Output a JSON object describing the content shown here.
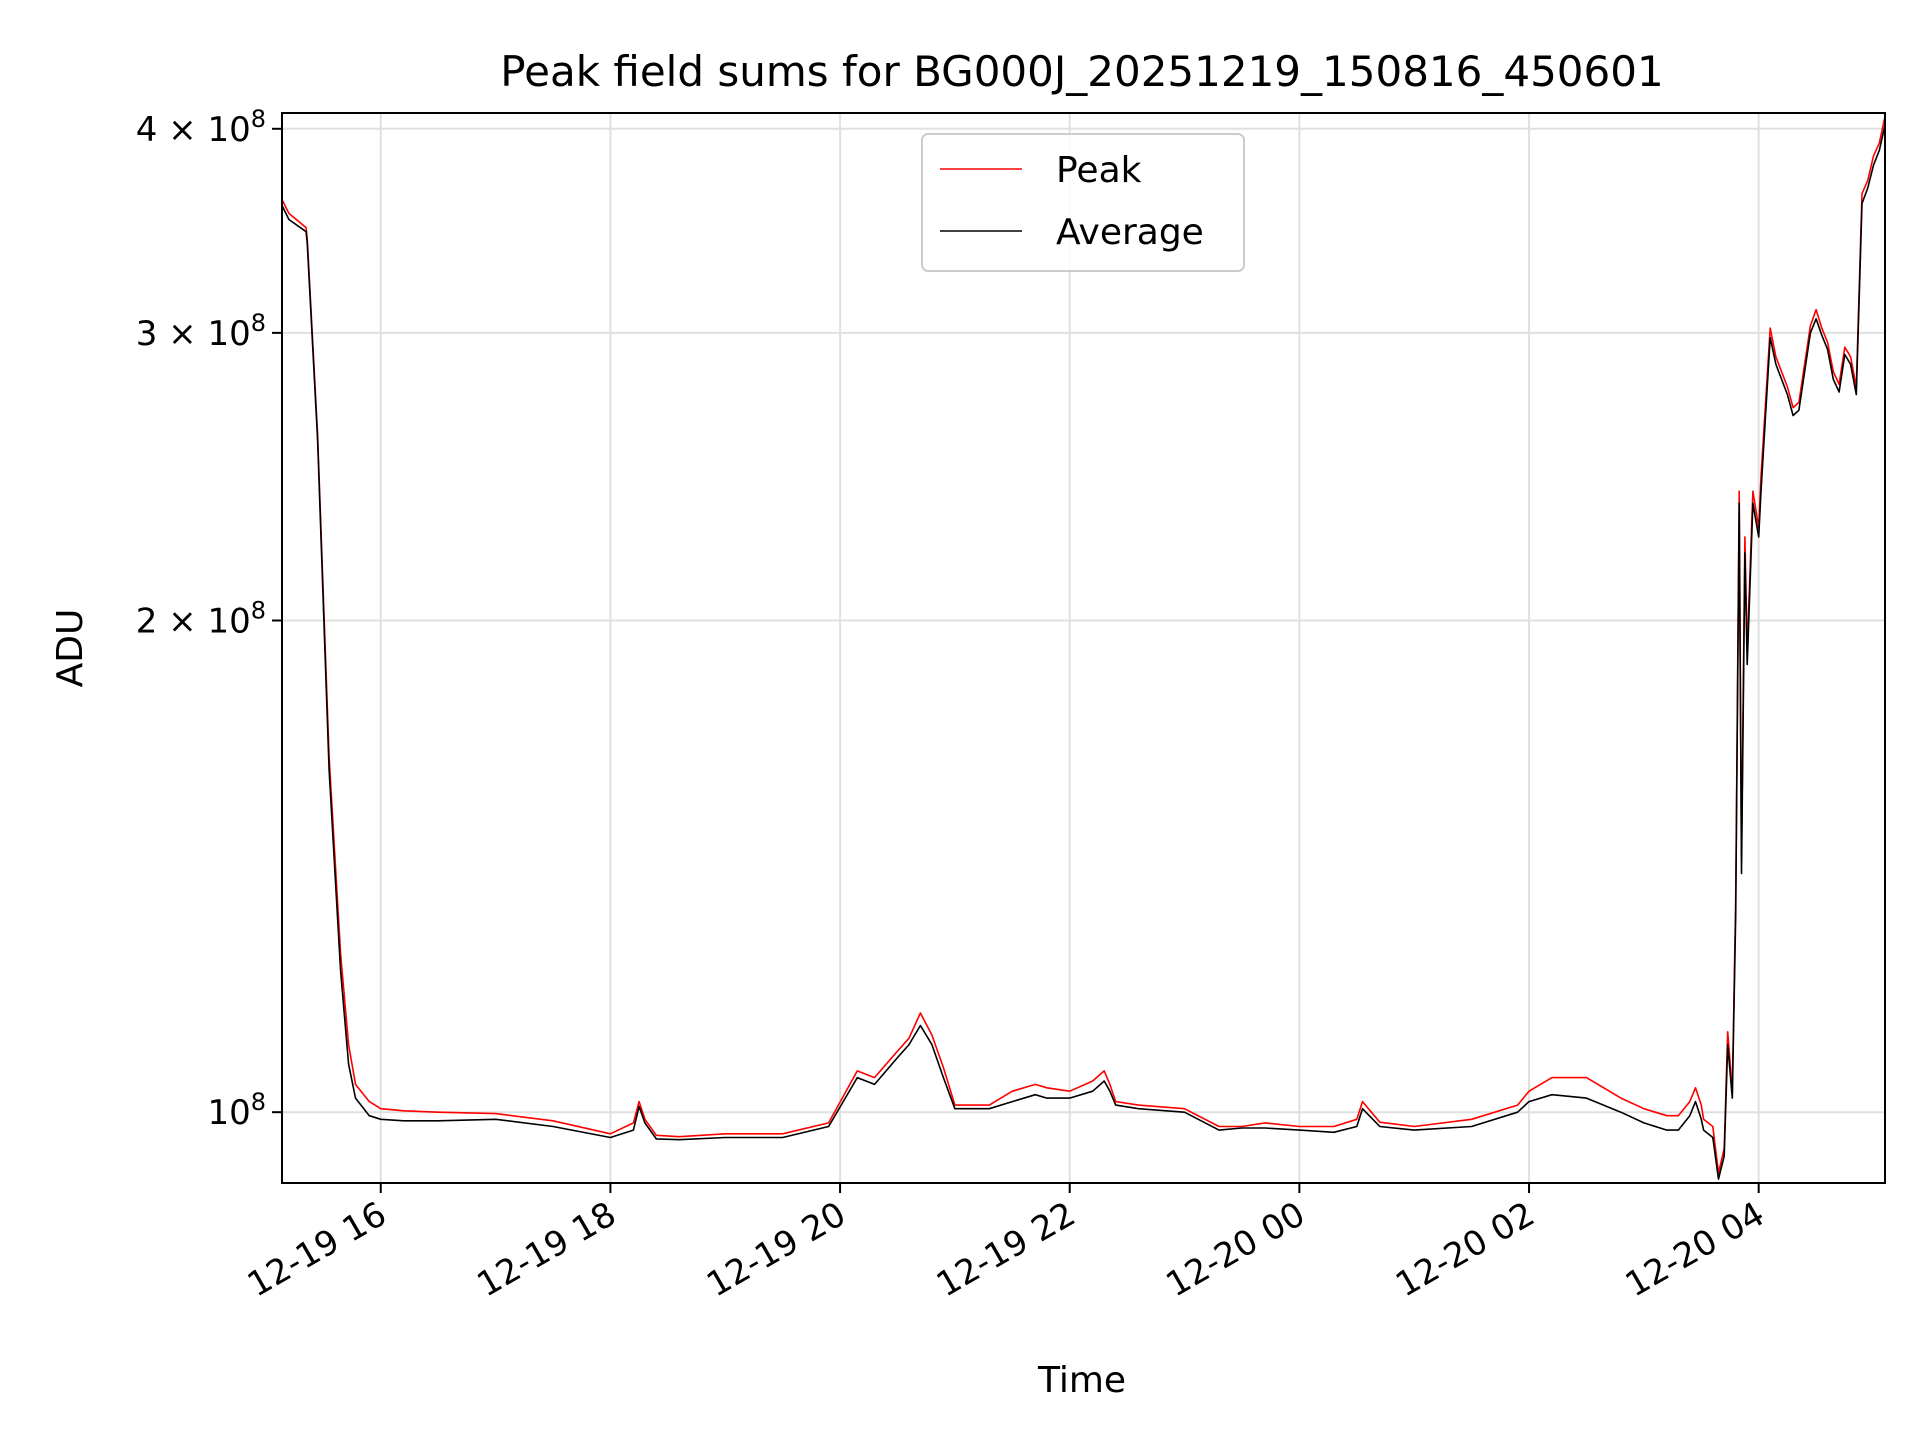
{
  "chart_data": {
    "type": "line",
    "title": "Peak field sums for BG000J_20251219_150816_450601",
    "xlabel": "Time",
    "ylabel": "ADU",
    "yscale": "log",
    "xlim_hours": [
      15.14,
      29.1
    ],
    "ylim": [
      90500000,
      409000000
    ],
    "grid": true,
    "legend_position": "upper-center",
    "x_ticks": [
      {
        "hour": 16,
        "label": "12-19 16"
      },
      {
        "hour": 18,
        "label": "12-19 18"
      },
      {
        "hour": 20,
        "label": "12-19 20"
      },
      {
        "hour": 22,
        "label": "12-19 22"
      },
      {
        "hour": 24,
        "label": "12-20 00"
      },
      {
        "hour": 26,
        "label": "12-20 02"
      },
      {
        "hour": 28,
        "label": "12-20 04"
      }
    ],
    "y_ticks": [
      {
        "value": 100000000,
        "base": "10",
        "exp": "8"
      },
      {
        "value": 200000000,
        "base": "2 × 10",
        "exp": "8"
      },
      {
        "value": 300000000,
        "base": "3 × 10",
        "exp": "8"
      },
      {
        "value": 400000000,
        "base": "4 × 10",
        "exp": "8"
      }
    ],
    "series": [
      {
        "name": "Peak",
        "color": "#ff0000",
        "x_hours": [
          15.14,
          15.2,
          15.35,
          15.36,
          15.45,
          15.55,
          15.65,
          15.72,
          15.78,
          15.9,
          16.0,
          16.2,
          16.5,
          17.0,
          17.5,
          18.0,
          18.2,
          18.25,
          18.3,
          18.4,
          18.6,
          19.0,
          19.5,
          19.9,
          20.15,
          20.3,
          20.5,
          20.6,
          20.7,
          20.8,
          20.9,
          21.0,
          21.3,
          21.5,
          21.7,
          21.8,
          22.0,
          22.2,
          22.3,
          22.35,
          22.4,
          22.6,
          23.0,
          23.3,
          23.5,
          23.7,
          24.0,
          24.3,
          24.5,
          24.55,
          24.7,
          25.0,
          25.5,
          25.9,
          26.0,
          26.2,
          26.5,
          26.8,
          27.0,
          27.2,
          27.3,
          27.4,
          27.45,
          27.5,
          27.52,
          27.6,
          27.65,
          27.7,
          27.73,
          27.77,
          27.8,
          27.83,
          27.85,
          27.88,
          27.9,
          27.95,
          28.0,
          28.02,
          28.1,
          28.15,
          28.25,
          28.3,
          28.35,
          28.45,
          28.5,
          28.55,
          28.6,
          28.65,
          28.7,
          28.75,
          28.8,
          28.85,
          28.9,
          28.95,
          29.0,
          29.05,
          29.1
        ],
        "values": [
          362000000,
          355000000,
          348000000,
          342000000,
          260000000,
          165000000,
          125000000,
          110000000,
          104000000,
          101500000,
          100500000,
          100200000,
          100000000,
          99800000,
          98800000,
          97000000,
          98500000,
          101500000,
          99000000,
          96800000,
          96600000,
          97000000,
          97000000,
          98500000,
          106000000,
          105000000,
          109000000,
          111000000,
          115000000,
          111500000,
          106500000,
          101000000,
          101000000,
          103000000,
          104000000,
          103500000,
          103000000,
          104500000,
          106000000,
          104000000,
          101500000,
          101000000,
          100500000,
          98000000,
          98000000,
          98500000,
          98000000,
          98000000,
          99000000,
          101500000,
          98600000,
          98000000,
          99000000,
          101000000,
          103000000,
          105000000,
          105000000,
          102000000,
          100500000,
          99500000,
          99500000,
          101500000,
          103500000,
          101000000,
          99000000,
          98000000,
          91800000,
          95000000,
          112000000,
          103000000,
          135000000,
          240000000,
          143000000,
          225000000,
          192000000,
          240000000,
          228000000,
          245000000,
          302000000,
          290000000,
          278000000,
          270000000,
          272000000,
          303000000,
          310000000,
          302000000,
          296000000,
          284000000,
          279000000,
          294000000,
          290000000,
          278000000,
          365000000,
          372000000,
          385000000,
          392000000,
          407000000
        ]
      },
      {
        "name": "Average",
        "color": "#000000",
        "x_hours": [
          15.14,
          15.2,
          15.35,
          15.36,
          15.45,
          15.55,
          15.65,
          15.72,
          15.78,
          15.9,
          16.0,
          16.2,
          16.5,
          17.0,
          17.5,
          18.0,
          18.2,
          18.25,
          18.3,
          18.4,
          18.6,
          19.0,
          19.5,
          19.9,
          20.15,
          20.3,
          20.5,
          20.6,
          20.7,
          20.8,
          20.9,
          21.0,
          21.3,
          21.5,
          21.7,
          21.8,
          22.0,
          22.2,
          22.3,
          22.35,
          22.4,
          22.6,
          23.0,
          23.3,
          23.5,
          23.7,
          24.0,
          24.3,
          24.5,
          24.55,
          24.7,
          25.0,
          25.5,
          25.9,
          26.0,
          26.2,
          26.5,
          26.8,
          27.0,
          27.2,
          27.3,
          27.4,
          27.45,
          27.5,
          27.52,
          27.6,
          27.65,
          27.7,
          27.73,
          27.77,
          27.8,
          27.83,
          27.85,
          27.88,
          27.9,
          27.95,
          28.0,
          28.02,
          28.1,
          28.15,
          28.25,
          28.3,
          28.35,
          28.45,
          28.5,
          28.55,
          28.6,
          28.65,
          28.7,
          28.75,
          28.8,
          28.85,
          28.9,
          28.95,
          29.0,
          29.05,
          29.1
        ],
        "values": [
          359000000,
          352000000,
          346000000,
          340000000,
          258000000,
          162000000,
          122000000,
          107000000,
          102000000,
          99500000,
          99000000,
          98800000,
          98800000,
          99000000,
          98000000,
          96500000,
          97500000,
          100800000,
          98500000,
          96300000,
          96200000,
          96500000,
          96500000,
          98000000,
          105000000,
          104000000,
          108000000,
          110000000,
          113000000,
          110000000,
          105000000,
          100500000,
          100500000,
          101500000,
          102500000,
          102000000,
          102000000,
          103000000,
          104500000,
          103000000,
          101000000,
          100500000,
          100000000,
          97500000,
          97800000,
          97800000,
          97500000,
          97200000,
          98000000,
          100500000,
          98000000,
          97500000,
          98000000,
          100000000,
          101500000,
          102500000,
          102000000,
          100000000,
          98500000,
          97500000,
          97500000,
          99500000,
          101500000,
          99000000,
          97500000,
          96500000,
          91000000,
          94000000,
          110000000,
          102000000,
          132000000,
          236000000,
          140000000,
          220000000,
          188000000,
          236000000,
          225000000,
          240000000,
          298000000,
          287000000,
          275000000,
          267000000,
          269000000,
          300000000,
          306000000,
          299000000,
          293000000,
          281000000,
          276000000,
          291000000,
          287000000,
          275000000,
          360000000,
          368000000,
          380000000,
          388000000,
          402000000
        ]
      }
    ]
  }
}
